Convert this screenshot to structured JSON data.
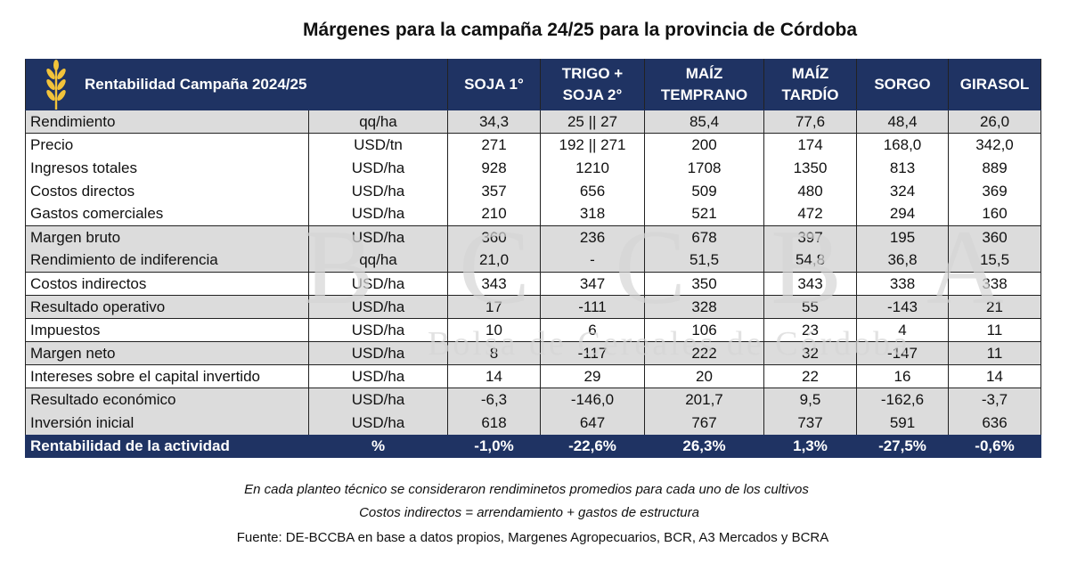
{
  "title": "Márgenes para la campaña 24/25 para la provincia de Córdoba",
  "watermark": {
    "initials": "BCCBA",
    "name": "Bolsa de Cereales de Córdoba"
  },
  "header": {
    "label": "Rentabilidad Campaña 2024/25",
    "icon": "wheat-icon",
    "columns": [
      "SOJA 1°",
      "TRIGO +\nSOJA 2°",
      "MAÍZ\nTEMPRANO",
      "MAÍZ\nTARDÍO",
      "SORGO",
      "GIRASOL"
    ]
  },
  "rows": [
    {
      "label": "Rendimiento",
      "unit": "qq/ha",
      "values": [
        "34,3",
        "25 || 27",
        "85,4",
        "77,6",
        "48,4",
        "26,0"
      ]
    },
    {
      "label": "Precio",
      "unit": "USD/tn",
      "values": [
        "271",
        "192 || 271",
        "200",
        "174",
        "168,0",
        "342,0"
      ]
    },
    {
      "label": "Ingresos totales",
      "unit": "USD/ha",
      "values": [
        "928",
        "1210",
        "1708",
        "1350",
        "813",
        "889"
      ]
    },
    {
      "label": "Costos directos",
      "unit": "USD/ha",
      "values": [
        "357",
        "656",
        "509",
        "480",
        "324",
        "369"
      ]
    },
    {
      "label": "Gastos comerciales",
      "unit": "USD/ha",
      "values": [
        "210",
        "318",
        "521",
        "472",
        "294",
        "160"
      ]
    },
    {
      "label": "Margen bruto",
      "unit": "USD/ha",
      "values": [
        "360",
        "236",
        "678",
        "397",
        "195",
        "360"
      ]
    },
    {
      "label": "Rendimiento de indiferencia",
      "unit": "qq/ha",
      "values": [
        "21,0",
        "-",
        "51,5",
        "54,8",
        "36,8",
        "15,5"
      ]
    },
    {
      "label": "Costos indirectos",
      "unit": "USD/ha",
      "values": [
        "343",
        "347",
        "350",
        "343",
        "338",
        "338"
      ]
    },
    {
      "label": "Resultado operativo",
      "unit": "USD/ha",
      "values": [
        "17",
        "-111",
        "328",
        "55",
        "-143",
        "21"
      ]
    },
    {
      "label": "Impuestos",
      "unit": "USD/ha",
      "values": [
        "10",
        "6",
        "106",
        "23",
        "4",
        "11"
      ]
    },
    {
      "label": "Margen neto",
      "unit": "USD/ha",
      "values": [
        "8",
        "-117",
        "222",
        "32",
        "-147",
        "11"
      ]
    },
    {
      "label": "Intereses sobre el capital invertido",
      "unit": "USD/ha",
      "values": [
        "14",
        "29",
        "20",
        "22",
        "16",
        "14"
      ]
    },
    {
      "label": "Resultado económico",
      "unit": "USD/ha",
      "values": [
        "-6,3",
        "-146,0",
        "201,7",
        "9,5",
        "-162,6",
        "-3,7"
      ]
    },
    {
      "label": "Inversión inicial",
      "unit": "USD/ha",
      "values": [
        "618",
        "647",
        "767",
        "737",
        "591",
        "636"
      ]
    }
  ],
  "total_row": {
    "label": "Rentabilidad de la actividad",
    "unit": "%",
    "values": [
      "-1,0%",
      "-22,6%",
      "26,3%",
      "1,3%",
      "-27,5%",
      "-0,6%"
    ]
  },
  "notes": [
    "En cada planteo técnico se consideraron rendiminetos promedios para cada uno de los cultivos",
    "Costos indirectos = arrendamiento + gastos de estructura",
    "Fuente: DE-BCCBA en base a datos propios, Margenes Agropecuarios, BCR, A3 Mercados y BCRA"
  ],
  "colors": {
    "header_bg": "#1f3363",
    "shade": "#dcdcdc",
    "wheat": "#f2c33a"
  }
}
